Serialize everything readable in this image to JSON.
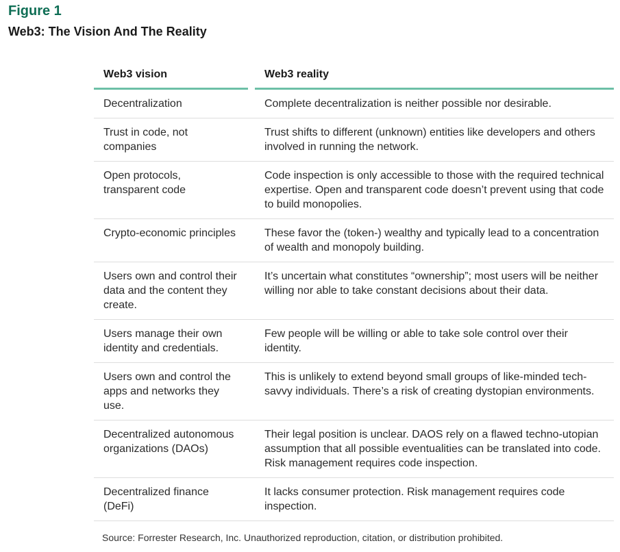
{
  "figure_label": "Figure 1",
  "title": "Web3: The Vision And The Reality",
  "colors": {
    "accent": "#0f6e55",
    "header_rule": "#6cbfa6"
  },
  "table": {
    "headers": [
      "Web3 vision",
      "Web3 reality"
    ],
    "rows": [
      [
        "Decentralization",
        "Complete decentralization is neither possible nor desirable."
      ],
      [
        "Trust in code, not companies",
        "Trust shifts to different (unknown) entities like developers and others involved in running the network."
      ],
      [
        "Open protocols, transparent code",
        "Code inspection is only accessible to those with the required technical expertise. Open and transparent code doesn’t prevent using that code to build monopolies."
      ],
      [
        "Crypto-economic principles",
        "These favor the (token-) wealthy and typically lead to a concentration of wealth and monopoly building."
      ],
      [
        "Users own and control their data and the content they create.",
        "It’s uncertain what constitutes “ownership”; most users will be neither willing nor able to take constant decisions about their data."
      ],
      [
        "Users manage their own identity and credentials.",
        "Few people will be willing or able to take sole control over their identity."
      ],
      [
        "Users own and control the apps and networks they use.",
        "This is unlikely to extend beyond small groups of like-minded tech-savvy individuals. There’s a risk of creating dystopian environments."
      ],
      [
        "Decentralized autonomous organizations (DAOs)",
        "Their legal position is unclear. DAOS rely on a flawed techno-utopian assumption that all possible eventualities can be translated into code. Risk management requires code inspection."
      ],
      [
        "Decentralized finance (DeFi)",
        "It lacks consumer protection. Risk management requires code inspection."
      ]
    ]
  },
  "source": "Source: Forrester Research, Inc. Unauthorized reproduction, citation, or distribution prohibited."
}
